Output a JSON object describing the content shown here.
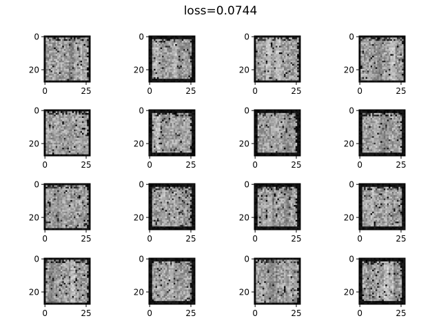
{
  "figure": {
    "title": "loss=0.0744"
  },
  "chart_data": {
    "type": "heatmap",
    "title": "loss=0.0744",
    "grid": false,
    "colormap": "gray",
    "layout": "4 rows x 4 columns of 28x28 grayscale sample images",
    "panels_count": 16,
    "image_size": [
      28,
      28
    ],
    "xticks": [
      0,
      25
    ],
    "yticks": [
      0,
      20
    ],
    "xlim": [
      -0.5,
      27.5
    ],
    "ylim": [
      27.5,
      -0.5
    ]
  }
}
